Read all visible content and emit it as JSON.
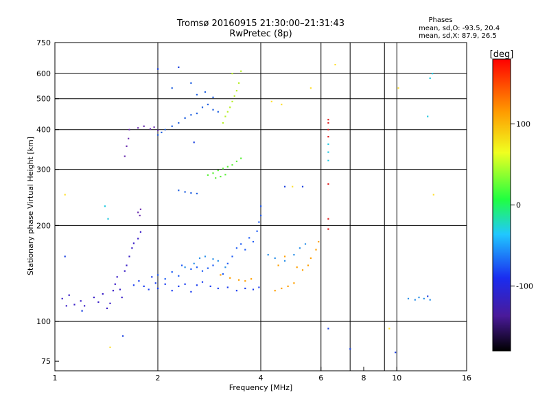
{
  "chart_data": {
    "type": "scatter",
    "title": "Tromsø 20160915 21:30:00–21:31:43",
    "subtitle": "RwPretec (8p)",
    "phase_info": {
      "header": "Phases",
      "line1": "mean, sd,O: -93.5, 20.4",
      "line2": "mean, sd,X:  87.9, 26.5"
    },
    "xlabel": "Frequency [MHz]",
    "ylabel": "Stationary phase Virtual Height [km]",
    "x_scale": "log",
    "y_scale": "log",
    "xlim": [
      1,
      16
    ],
    "ylim": [
      70,
      750
    ],
    "x_ticks": [
      1,
      2,
      4,
      6,
      8,
      10,
      16
    ],
    "x_tick_labels": [
      "1",
      "2",
      "4",
      "6",
      "8",
      "10",
      "16"
    ],
    "y_ticks": [
      75,
      100,
      200,
      300,
      400,
      500,
      600,
      750
    ],
    "y_tick_labels": [
      "75",
      "100",
      "200",
      "300",
      "400",
      "500",
      "600",
      "750"
    ],
    "x_gridlines": [
      2,
      4,
      6,
      7.3,
      9.2,
      10
    ],
    "y_gridlines": [
      100,
      200,
      300,
      400,
      500,
      600
    ],
    "grid": true,
    "colorbar": {
      "label": "[deg]",
      "range": [
        -180,
        180
      ],
      "ticks": [
        100,
        0,
        -100
      ],
      "tick_labels": [
        "100",
        "0",
        "-100"
      ]
    },
    "series": [
      {
        "color": "#3a1fc8",
        "phase": -125,
        "points": [
          [
            1.05,
            118
          ],
          [
            1.08,
            112
          ],
          [
            1.1,
            121
          ],
          [
            1.14,
            113
          ],
          [
            1.19,
            116
          ],
          [
            1.22,
            112
          ],
          [
            1.3,
            119
          ],
          [
            1.34,
            115
          ],
          [
            1.38,
            122
          ],
          [
            1.42,
            110
          ],
          [
            1.45,
            114
          ],
          [
            1.48,
            125
          ],
          [
            1.5,
            131
          ],
          [
            1.52,
            138
          ],
          [
            1.55,
            126
          ],
          [
            1.57,
            119
          ],
          [
            1.6,
            144
          ],
          [
            1.62,
            150
          ],
          [
            1.65,
            160
          ],
          [
            1.68,
            170
          ],
          [
            1.7,
            176
          ],
          [
            1.75,
            182
          ],
          [
            1.78,
            191
          ]
        ]
      },
      {
        "color": "#1a3cf0",
        "phase": -105,
        "points": [
          [
            1.7,
            130
          ],
          [
            1.76,
            134
          ],
          [
            1.82,
            129
          ],
          [
            1.88,
            126
          ],
          [
            1.92,
            138
          ],
          [
            1.97,
            132
          ],
          [
            2.0,
            127
          ],
          [
            2.1,
            131
          ],
          [
            2.2,
            125
          ],
          [
            2.3,
            129
          ],
          [
            2.4,
            131
          ],
          [
            2.5,
            124
          ],
          [
            2.6,
            130
          ],
          [
            2.7,
            133
          ],
          [
            2.85,
            129
          ],
          [
            3.0,
            127
          ],
          [
            3.2,
            128
          ],
          [
            3.4,
            125
          ],
          [
            3.6,
            127
          ],
          [
            3.8,
            126
          ],
          [
            3.95,
            128
          ]
        ]
      },
      {
        "color": "#1e5cf5",
        "phase": -98,
        "points": [
          [
            2.0,
            140
          ],
          [
            2.1,
            136
          ],
          [
            2.2,
            143
          ],
          [
            2.3,
            139
          ],
          [
            2.35,
            150
          ],
          [
            2.5,
            146
          ],
          [
            2.6,
            148
          ],
          [
            2.7,
            144
          ],
          [
            2.8,
            147
          ],
          [
            2.9,
            150
          ],
          [
            3.1,
            141
          ],
          [
            3.2,
            152
          ],
          [
            3.3,
            160
          ],
          [
            3.4,
            170
          ],
          [
            3.5,
            175
          ],
          [
            3.6,
            168
          ],
          [
            3.7,
            183
          ],
          [
            3.8,
            178
          ],
          [
            3.9,
            192
          ],
          [
            3.95,
            205
          ],
          [
            4.0,
            215
          ],
          [
            4.0,
            230
          ]
        ]
      },
      {
        "color": "#2a8fe8",
        "phase": -75,
        "points": [
          [
            2.4,
            148
          ],
          [
            2.55,
            152
          ],
          [
            2.65,
            158
          ],
          [
            2.75,
            160
          ],
          [
            2.9,
            157
          ],
          [
            3.0,
            155
          ],
          [
            3.15,
            148
          ],
          [
            4.2,
            162
          ],
          [
            4.4,
            158
          ],
          [
            4.7,
            155
          ],
          [
            5.0,
            162
          ],
          [
            5.2,
            170
          ],
          [
            5.4,
            175
          ],
          [
            10.8,
            118
          ],
          [
            11.3,
            117
          ],
          [
            11.6,
            119
          ],
          [
            12.0,
            118
          ],
          [
            12.5,
            117
          ]
        ]
      },
      {
        "color": "#ffa000",
        "phase": 110,
        "points": [
          [
            3.05,
            140
          ],
          [
            3.25,
            137
          ],
          [
            3.45,
            135
          ],
          [
            3.6,
            134
          ],
          [
            3.75,
            136
          ],
          [
            4.4,
            125
          ],
          [
            4.6,
            127
          ],
          [
            4.8,
            129
          ],
          [
            5.0,
            132
          ],
          [
            4.5,
            150
          ],
          [
            4.7,
            160
          ],
          [
            5.1,
            148
          ],
          [
            5.3,
            145
          ],
          [
            5.5,
            150
          ],
          [
            5.6,
            158
          ],
          [
            5.8,
            168
          ],
          [
            5.9,
            178
          ]
        ]
      },
      {
        "color": "#6b2fb0",
        "phase": -140,
        "points": [
          [
            1.65,
            400
          ],
          [
            1.75,
            405
          ],
          [
            1.82,
            410
          ],
          [
            1.9,
            402
          ],
          [
            1.95,
            407
          ],
          [
            2.0,
            398
          ],
          [
            1.6,
            330
          ],
          [
            1.62,
            355
          ],
          [
            1.64,
            375
          ],
          [
            1.75,
            220
          ],
          [
            1.77,
            215
          ],
          [
            1.78,
            225
          ]
        ]
      },
      {
        "color": "#2060e0",
        "phase": -100,
        "points": [
          [
            2.0,
            385
          ],
          [
            2.05,
            392
          ],
          [
            2.1,
            400
          ],
          [
            2.2,
            410
          ],
          [
            2.3,
            420
          ],
          [
            2.4,
            435
          ],
          [
            2.5,
            445
          ],
          [
            2.6,
            450
          ],
          [
            2.7,
            470
          ],
          [
            2.8,
            480
          ],
          [
            2.9,
            462
          ],
          [
            3.0,
            455
          ],
          [
            2.6,
            515
          ],
          [
            2.75,
            525
          ],
          [
            2.9,
            505
          ],
          [
            2.3,
            258
          ],
          [
            2.4,
            255
          ],
          [
            2.5,
            253
          ],
          [
            2.6,
            252
          ],
          [
            2.2,
            540
          ],
          [
            2.5,
            560
          ]
        ]
      },
      {
        "color": "#5cf03a",
        "phase": 30,
        "points": [
          [
            2.8,
            288
          ],
          [
            2.9,
            292
          ],
          [
            3.0,
            298
          ],
          [
            3.1,
            302
          ],
          [
            3.2,
            306
          ],
          [
            3.3,
            310
          ],
          [
            3.4,
            318
          ],
          [
            3.5,
            325
          ],
          [
            2.95,
            282
          ],
          [
            3.05,
            285
          ],
          [
            3.15,
            289
          ]
        ]
      },
      {
        "color": "#b8f02a",
        "phase": 70,
        "points": [
          [
            3.1,
            420
          ],
          [
            3.15,
            440
          ],
          [
            3.2,
            455
          ],
          [
            3.25,
            470
          ],
          [
            3.3,
            490
          ],
          [
            3.35,
            510
          ],
          [
            3.4,
            530
          ],
          [
            3.45,
            560
          ],
          [
            3.3,
            600
          ],
          [
            3.5,
            610
          ]
        ]
      },
      {
        "color": "#e02020",
        "phase": 160,
        "points": [
          [
            6.3,
            420
          ],
          [
            6.3,
            430
          ],
          [
            6.3,
            400
          ],
          [
            6.3,
            380
          ],
          [
            6.3,
            270
          ],
          [
            6.3,
            210
          ],
          [
            6.3,
            195
          ]
        ]
      },
      {
        "color": "#20c8e0",
        "phase": -45,
        "points": [
          [
            6.3,
            360
          ],
          [
            6.3,
            340
          ],
          [
            6.3,
            320
          ],
          [
            1.4,
            230
          ],
          [
            1.43,
            210
          ],
          [
            12.3,
            440
          ],
          [
            12.5,
            580
          ],
          [
            12.7,
            600
          ]
        ]
      },
      {
        "color": "#1a40e0",
        "phase": -110,
        "points": [
          [
            1.07,
            160
          ],
          [
            1.2,
            108
          ],
          [
            1.58,
            90
          ],
          [
            2.55,
            365
          ],
          [
            4.7,
            265
          ],
          [
            5.3,
            265
          ],
          [
            6.3,
            95
          ],
          [
            7.3,
            82
          ],
          [
            9.9,
            80
          ],
          [
            12.3,
            120
          ],
          [
            2.0,
            620
          ],
          [
            2.3,
            628
          ]
        ]
      },
      {
        "color": "#ffe030",
        "phase": 85,
        "points": [
          [
            1.45,
            83
          ],
          [
            1.07,
            250
          ],
          [
            4.95,
            265
          ],
          [
            4.3,
            490
          ],
          [
            4.6,
            480
          ],
          [
            5.6,
            540
          ],
          [
            10.1,
            540
          ],
          [
            12.8,
            250
          ],
          [
            6.6,
            640
          ],
          [
            9.5,
            95
          ]
        ]
      }
    ]
  }
}
